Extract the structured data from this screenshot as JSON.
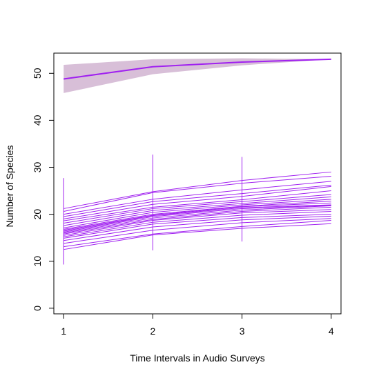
{
  "chart_data": {
    "type": "line",
    "title": "",
    "xlabel": "Time Intervals in Audio Surveys",
    "ylabel": "Number of Species",
    "x": [
      1,
      2,
      3,
      4
    ],
    "xticks": [
      "1",
      "2",
      "3",
      "4"
    ],
    "yticks": [
      "0",
      "10",
      "20",
      "30",
      "40",
      "50"
    ],
    "xlim": [
      0.89,
      4.11
    ],
    "ylim": [
      -1.2,
      54.3
    ],
    "grid": false,
    "legend": "none",
    "colors": {
      "line": "#A020F0",
      "band": "#D8BFD8"
    },
    "accumulation_curve": {
      "mean": [
        48.8,
        51.4,
        52.4,
        53.0
      ],
      "lower": [
        45.8,
        49.8,
        51.7,
        53.0
      ],
      "upper": [
        51.8,
        53.0,
        53.2,
        53.0
      ]
    },
    "error_bars": [
      {
        "x": 1,
        "low": 9.3,
        "high": 27.7
      },
      {
        "x": 2,
        "low": 12.3,
        "high": 32.7
      },
      {
        "x": 3,
        "low": 14.2,
        "high": 32.2
      }
    ],
    "site_curves": [
      [
        21.2,
        24.8,
        27.2,
        29.0
      ],
      [
        20.6,
        24.6,
        26.6,
        28.1
      ],
      [
        20.0,
        23.2,
        25.2,
        27.0
      ],
      [
        19.5,
        22.7,
        24.4,
        26.2
      ],
      [
        19.0,
        22.1,
        23.8,
        25.9
      ],
      [
        18.6,
        21.5,
        23.1,
        25.0
      ],
      [
        18.1,
        21.2,
        22.7,
        24.2
      ],
      [
        17.6,
        20.8,
        22.3,
        23.7
      ],
      [
        17.1,
        20.4,
        22.0,
        23.2
      ],
      [
        16.8,
        20.0,
        21.7,
        22.8
      ],
      [
        16.6,
        19.8,
        21.6,
        22.4
      ],
      [
        16.4,
        19.7,
        21.4,
        22.0
      ],
      [
        16.2,
        19.5,
        21.2,
        21.9
      ],
      [
        16.0,
        19.2,
        20.9,
        21.8
      ],
      [
        15.8,
        18.9,
        20.6,
        21.5
      ],
      [
        15.5,
        18.7,
        20.3,
        21.0
      ],
      [
        15.2,
        18.3,
        19.8,
        20.6
      ],
      [
        14.9,
        17.9,
        19.3,
        20.0
      ],
      [
        14.4,
        17.3,
        18.8,
        19.6
      ],
      [
        13.8,
        16.6,
        18.2,
        19.1
      ],
      [
        13.1,
        15.8,
        17.4,
        18.7
      ],
      [
        12.5,
        15.6,
        17.0,
        18.0
      ]
    ]
  }
}
